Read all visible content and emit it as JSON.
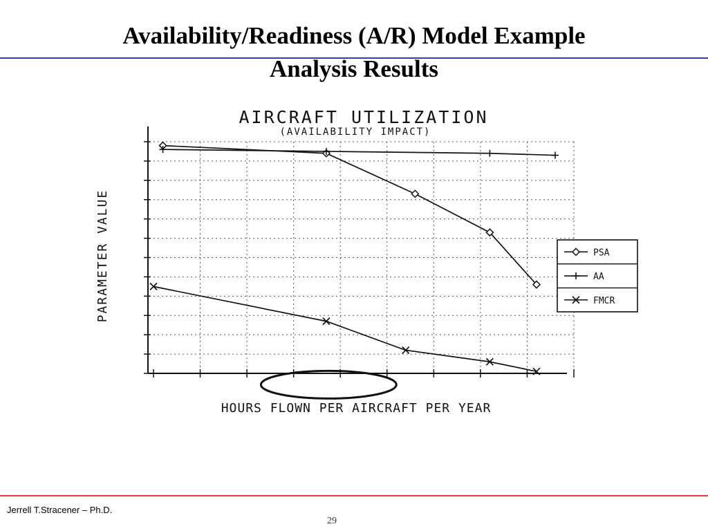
{
  "slide": {
    "title_line1": "Availability/Readiness (A/R) Model Example",
    "title_line2": "Analysis Results",
    "footer_author": "Jerrell T.Stracener – Ph.D.",
    "page_number": "29"
  },
  "colors": {
    "title_rule": "#2b3fb0",
    "footer_rule": "#d83a3a",
    "ink": "#111111"
  },
  "chart_data": {
    "type": "line",
    "title": "AIRCRAFT UTILIZATION",
    "subtitle": "(AVAILABILITY IMPACT)",
    "xlabel": "HOURS FLOWN PER AIRCRAFT PER YEAR",
    "ylabel": "PARAMETER VALUE",
    "xlim": [
      0,
      9
    ],
    "ylim": [
      0,
      12
    ],
    "grid": true,
    "legend_position": "right",
    "series": [
      {
        "name": "PSA",
        "marker": "diamond",
        "x": [
          0.2,
          3.7,
          5.6,
          7.2,
          8.2
        ],
        "y": [
          11.8,
          11.4,
          9.3,
          7.3,
          4.6
        ]
      },
      {
        "name": "AA",
        "marker": "plus",
        "x": [
          0.2,
          3.7,
          7.2,
          8.6
        ],
        "y": [
          11.6,
          11.5,
          11.4,
          11.3
        ]
      },
      {
        "name": "FMCR",
        "marker": "x",
        "x": [
          0.0,
          3.7,
          5.4,
          7.2,
          8.2
        ],
        "y": [
          4.5,
          2.7,
          1.2,
          0.6,
          0.1
        ]
      }
    ],
    "annotation": {
      "shape": "ellipse",
      "x_range": [
        2.3,
        5.2
      ],
      "y": -0.3
    }
  }
}
